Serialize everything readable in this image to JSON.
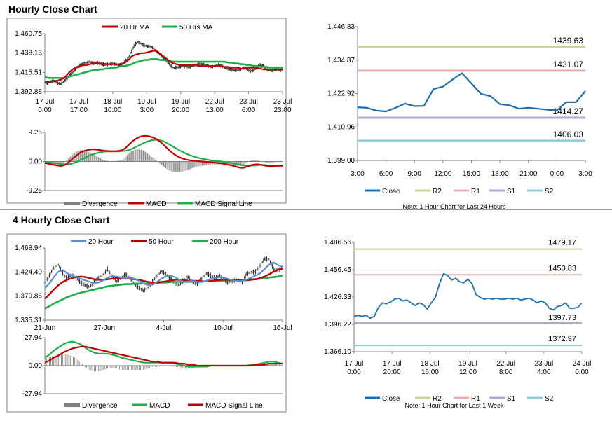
{
  "colors": {
    "ma20": "#c00000",
    "ma50": "#1fae4a",
    "close": "#1e6fb0",
    "r2": "#c3d69b",
    "r1": "#e6b0b0",
    "s1": "#b4a7cf",
    "s2": "#92cddc",
    "hist": "#808080",
    "grid": "#808080",
    "p20": "#5b8fd0",
    "p50": "#c00000",
    "p200": "#1fae4a"
  },
  "sections": {
    "hourly_title": "Hourly Close Chart",
    "four_hourly_title": "4 Hourly Close Chart"
  },
  "chart_data": [
    {
      "id": "hourly_price",
      "type": "line",
      "title": "Hourly Close Chart",
      "legend": [
        "20 Hr MA",
        "50 Hrs MA"
      ],
      "y_ticks": [
        "1,460.75",
        "1,438.13",
        "1,415.51",
        "1,392.88"
      ],
      "ylim": [
        1392.88,
        1460.75
      ],
      "x_ticks": [
        [
          "17 Jul",
          "0:00"
        ],
        [
          "17 Jul",
          "17:00"
        ],
        [
          "18 Jul",
          "10:00"
        ],
        [
          "19 Jul",
          "3:00"
        ],
        [
          "19 Jul",
          "20:00"
        ],
        [
          "22 Jul",
          "13:00"
        ],
        [
          "23 Jul",
          "6:00"
        ],
        [
          "23 Jul",
          "23:00"
        ]
      ],
      "close": [
        1404,
        1403,
        1405,
        1406,
        1403,
        1402,
        1405,
        1409,
        1413,
        1417,
        1421,
        1424,
        1426,
        1427,
        1428,
        1426,
        1427,
        1426,
        1425,
        1425,
        1425,
        1426,
        1425,
        1424,
        1425,
        1428,
        1433,
        1440,
        1448,
        1451,
        1449,
        1447,
        1446,
        1446,
        1443,
        1439,
        1436,
        1433,
        1429,
        1424,
        1421,
        1421,
        1422,
        1423,
        1422,
        1422,
        1423,
        1424,
        1425,
        1425,
        1424,
        1423,
        1422,
        1423,
        1424,
        1423,
        1421,
        1420,
        1419,
        1418,
        1418,
        1419,
        1421,
        1419,
        1417,
        1418,
        1421,
        1424,
        1423,
        1419,
        1418,
        1418,
        1419,
        1418,
        1418
      ],
      "series": [
        {
          "name": "20 Hr MA",
          "values": [
            1405,
            1405,
            1405,
            1405,
            1406,
            1407,
            1409,
            1413,
            1417,
            1420,
            1422,
            1423,
            1424,
            1424,
            1425,
            1426,
            1426,
            1426,
            1425,
            1425,
            1425,
            1425,
            1425,
            1425,
            1425,
            1427,
            1430,
            1434,
            1436,
            1437,
            1438,
            1438,
            1439,
            1440,
            1441,
            1440,
            1437,
            1434,
            1431,
            1428,
            1426,
            1425,
            1424,
            1424,
            1424,
            1424,
            1424,
            1424,
            1423,
            1423,
            1423,
            1423,
            1423,
            1423,
            1423,
            1423,
            1422,
            1422,
            1421,
            1421,
            1421,
            1420,
            1420,
            1421,
            1421,
            1421,
            1420,
            1420,
            1419,
            1419,
            1419,
            1419,
            1419,
            1419,
            1419
          ]
        },
        {
          "name": "50 Hrs MA",
          "values": [
            1410,
            1409,
            1409,
            1409,
            1409,
            1409,
            1409,
            1410,
            1411,
            1412,
            1413,
            1414,
            1415,
            1416,
            1417,
            1418,
            1418,
            1419,
            1419,
            1420,
            1420,
            1421,
            1421,
            1422,
            1423,
            1423,
            1424,
            1425,
            1427,
            1428,
            1429,
            1430,
            1430,
            1431,
            1431,
            1431,
            1430,
            1430,
            1429,
            1429,
            1428,
            1428,
            1428,
            1428,
            1428,
            1428,
            1428,
            1428,
            1428,
            1428,
            1428,
            1428,
            1428,
            1428,
            1428,
            1428,
            1428,
            1427,
            1427,
            1426,
            1426,
            1425,
            1425,
            1424,
            1424,
            1423,
            1423,
            1422,
            1422,
            1422,
            1421,
            1421,
            1421,
            1421,
            1421
          ]
        }
      ]
    },
    {
      "id": "hourly_macd",
      "type": "line",
      "legend": [
        "Divergence",
        "MACD",
        "MACD Signal Line"
      ],
      "y_ticks": [
        "9.26",
        "0.00",
        "-9.26"
      ],
      "ylim": [
        -9.26,
        9.26
      ],
      "series": [
        {
          "name": "MACD",
          "values": [
            -0.5,
            -0.7,
            -0.9,
            -1.1,
            -1.3,
            -1.4,
            -1.2,
            -0.6,
            0.3,
            1.2,
            2.0,
            2.8,
            3.3,
            3.6,
            3.8,
            3.9,
            3.8,
            3.7,
            3.5,
            3.4,
            3.3,
            3.3,
            3.3,
            3.4,
            3.6,
            4.2,
            5.2,
            6.2,
            7.0,
            7.6,
            8.0,
            8.2,
            8.1,
            7.9,
            7.5,
            7.0,
            6.2,
            5.3,
            4.3,
            3.3,
            2.5,
            1.8,
            1.3,
            0.9,
            0.6,
            0.4,
            0.3,
            0.2,
            0.1,
            0.0,
            -0.1,
            -0.2,
            -0.3,
            -0.4,
            -0.5,
            -0.6,
            -0.8,
            -1.0,
            -1.2,
            -1.5,
            -1.8,
            -2.0,
            -2.0,
            -1.6,
            -1.2,
            -1.0,
            -0.9,
            -1.0,
            -1.2,
            -1.4,
            -1.5,
            -1.5,
            -1.4,
            -1.4,
            -1.4
          ]
        },
        {
          "name": "MACD Signal Line",
          "values": [
            -0.2,
            -0.3,
            -0.4,
            -0.5,
            -0.7,
            -0.8,
            -0.9,
            -1.0,
            -0.8,
            -0.5,
            -0.1,
            0.4,
            0.9,
            1.4,
            1.9,
            2.3,
            2.6,
            2.9,
            3.1,
            3.2,
            3.2,
            3.2,
            3.2,
            3.2,
            3.3,
            3.4,
            3.6,
            4.0,
            4.5,
            5.0,
            5.5,
            6.0,
            6.4,
            6.7,
            6.9,
            6.9,
            6.7,
            6.4,
            5.9,
            5.3,
            4.7,
            4.1,
            3.5,
            3.0,
            2.5,
            2.1,
            1.7,
            1.4,
            1.1,
            0.9,
            0.7,
            0.5,
            0.3,
            0.2,
            0.1,
            0.0,
            -0.2,
            -0.3,
            -0.5,
            -0.7,
            -0.9,
            -1.1,
            -1.3,
            -1.4,
            -1.4,
            -1.3,
            -1.2,
            -1.1,
            -1.1,
            -1.2,
            -1.3,
            -1.3,
            -1.3,
            -1.3,
            -1.3
          ]
        }
      ]
    },
    {
      "id": "hourly_pivot",
      "type": "line",
      "note": "Note: 1 Hour Chart for Last 24 Hours",
      "legend": [
        "Close",
        "R2",
        "R1",
        "S1",
        "S2"
      ],
      "y_ticks": [
        "1,446.83",
        "1,434.87",
        "1,422.92",
        "1,410.96",
        "1,399.00"
      ],
      "ylim": [
        1399.0,
        1446.83
      ],
      "x_ticks": [
        "3:00",
        "6:00",
        "9:00",
        "12:00",
        "15:00",
        "18:00",
        "21:00",
        "0:00",
        "3:00"
      ],
      "close": [
        1418.0,
        1417.8,
        1416.8,
        1416.5,
        1417.8,
        1419.3,
        1418.4,
        1418.5,
        1424.5,
        1425.4,
        1427.9,
        1430.2,
        1426.5,
        1422.8,
        1422.0,
        1419.1,
        1418.7,
        1417.5,
        1417.8,
        1417.5,
        1417.1,
        1416.9,
        1419.8,
        1419.8,
        1423.8
      ],
      "levels": [
        {
          "name": "R2",
          "value": 1439.63,
          "label": "1439.63"
        },
        {
          "name": "R1",
          "value": 1431.07,
          "label": "1431.07"
        },
        {
          "name": "S1",
          "value": 1414.27,
          "label": "1414.27"
        },
        {
          "name": "S2",
          "value": 1406.03,
          "label": "1406.03"
        }
      ]
    },
    {
      "id": "four_hourly_price",
      "type": "line",
      "title": "4 Hourly Close Chart",
      "legend": [
        "20 Hour",
        "50 Hour",
        "200 Hour"
      ],
      "y_ticks": [
        "1,468.94",
        "1,424.40",
        "1,379.86",
        "1,335.31"
      ],
      "ylim": [
        1335.31,
        1468.94
      ],
      "x_ticks": [
        "21-Jun",
        "27-Jun",
        "4-Jul",
        "10-Jul",
        "16-Jul"
      ],
      "close": [
        1405,
        1418,
        1432,
        1438,
        1422,
        1412,
        1420,
        1413,
        1405,
        1400,
        1397,
        1407,
        1414,
        1420,
        1430,
        1417,
        1407,
        1413,
        1420,
        1412,
        1402,
        1395,
        1390,
        1396,
        1407,
        1417,
        1426,
        1420,
        1412,
        1404,
        1400,
        1410,
        1415,
        1405,
        1403,
        1412,
        1422,
        1418,
        1412,
        1418,
        1408,
        1405,
        1408,
        1410,
        1406,
        1421,
        1424,
        1425,
        1436,
        1449,
        1448,
        1430,
        1428,
        1432
      ],
      "series": [
        {
          "name": "20 Hour",
          "values": [
            1395,
            1403,
            1415,
            1425,
            1428,
            1422,
            1418,
            1415,
            1412,
            1409,
            1406,
            1404,
            1405,
            1409,
            1414,
            1417,
            1416,
            1414,
            1413,
            1414,
            1412,
            1408,
            1403,
            1400,
            1401,
            1406,
            1412,
            1417,
            1418,
            1415,
            1410,
            1406,
            1407,
            1408,
            1406,
            1406,
            1408,
            1412,
            1414,
            1415,
            1414,
            1411,
            1409,
            1408,
            1408,
            1410,
            1414,
            1418,
            1422,
            1430,
            1438,
            1442,
            1437,
            1434
          ]
        },
        {
          "name": "50 Hour",
          "values": [
            1375,
            1383,
            1392,
            1400,
            1406,
            1410,
            1413,
            1415,
            1416,
            1415,
            1413,
            1411,
            1410,
            1410,
            1411,
            1412,
            1413,
            1413,
            1412,
            1412,
            1411,
            1410,
            1408,
            1406,
            1405,
            1405,
            1406,
            1407,
            1409,
            1410,
            1410,
            1409,
            1408,
            1408,
            1408,
            1407,
            1407,
            1408,
            1409,
            1410,
            1410,
            1410,
            1409,
            1409,
            1409,
            1409,
            1410,
            1411,
            1413,
            1416,
            1420,
            1425,
            1429,
            1430
          ]
        },
        {
          "name": "200 Hour",
          "values": [
            1357,
            1361,
            1366,
            1370,
            1374,
            1378,
            1381,
            1384,
            1386,
            1388,
            1390,
            1392,
            1394,
            1396,
            1398,
            1399,
            1400,
            1401,
            1402,
            1402,
            1403,
            1403,
            1403,
            1403,
            1404,
            1404,
            1405,
            1405,
            1406,
            1406,
            1406,
            1406,
            1406,
            1407,
            1407,
            1407,
            1407,
            1408,
            1408,
            1408,
            1409,
            1409,
            1409,
            1409,
            1410,
            1410,
            1411,
            1411,
            1412,
            1413,
            1414,
            1415,
            1416,
            1418
          ]
        }
      ]
    },
    {
      "id": "four_hourly_macd",
      "type": "line",
      "legend": [
        "Divergence",
        "MACD",
        "MACD Signal Line"
      ],
      "y_ticks": [
        "27.94",
        "0.00",
        "-27.94"
      ],
      "ylim": [
        -27.94,
        27.94
      ],
      "series": [
        {
          "name": "MACD",
          "values": [
            8,
            11,
            15,
            18,
            21,
            23,
            24,
            23,
            21,
            18,
            15,
            13,
            12,
            12,
            12,
            11,
            10,
            8,
            7,
            6,
            5,
            4,
            3,
            3,
            3,
            3,
            3,
            3,
            3,
            2,
            1,
            0,
            -1,
            -1,
            -1,
            -1,
            -1,
            0,
            0,
            0,
            0,
            0,
            0,
            0,
            0,
            0,
            1,
            1,
            2,
            3,
            4,
            4,
            3,
            2
          ]
        },
        {
          "name": "MACD Signal Line",
          "values": [
            3,
            5,
            8,
            10,
            13,
            15,
            17,
            18,
            19,
            19,
            18,
            17,
            16,
            15,
            14,
            13,
            12,
            11,
            10,
            9,
            8,
            7,
            6,
            5,
            4,
            4,
            3,
            3,
            3,
            3,
            2,
            2,
            1,
            1,
            0,
            0,
            0,
            0,
            0,
            0,
            0,
            0,
            0,
            0,
            0,
            0,
            0,
            1,
            1,
            1,
            2,
            2,
            2,
            2
          ]
        }
      ]
    },
    {
      "id": "four_hourly_pivot",
      "type": "line",
      "note": "Note: 1 Hour Chart for Last 1 Week",
      "legend": [
        "Close",
        "R2",
        "R1",
        "S1",
        "S2"
      ],
      "y_ticks": [
        "1,486.56",
        "1,456.45",
        "1,426.33",
        "1,396.22",
        "1,366.10"
      ],
      "ylim": [
        1366.1,
        1486.56
      ],
      "x_ticks": [
        [
          "17 Jul",
          "0:00"
        ],
        [
          "17 Jul",
          "20:00"
        ],
        [
          "18 Jul",
          "16:00"
        ],
        [
          "19 Jul",
          "12:00"
        ],
        [
          "22 Jul",
          "8:00"
        ],
        [
          "23 Jul",
          "4:00"
        ],
        [
          "24 Jul",
          "0:00"
        ]
      ],
      "close": [
        1405,
        1406,
        1405,
        1406,
        1403,
        1405,
        1415,
        1420,
        1419,
        1421,
        1424,
        1425,
        1422,
        1423,
        1420,
        1417,
        1420,
        1418,
        1413,
        1420,
        1426,
        1441,
        1452,
        1450,
        1445,
        1447,
        1443,
        1442,
        1446,
        1441,
        1429,
        1426,
        1424,
        1425,
        1424,
        1425,
        1424,
        1424,
        1425,
        1424,
        1425,
        1423,
        1424,
        1425,
        1423,
        1420,
        1422,
        1420,
        1414,
        1412,
        1416,
        1417,
        1420,
        1414,
        1414,
        1415,
        1420
      ],
      "levels": [
        {
          "name": "R2",
          "value": 1479.17,
          "label": "1479.17"
        },
        {
          "name": "R1",
          "value": 1450.83,
          "label": "1450.83"
        },
        {
          "name": "S1",
          "value": 1397.73,
          "label": "1397.73"
        },
        {
          "name": "S2",
          "value": 1372.97,
          "label": "1372.97"
        }
      ]
    }
  ]
}
